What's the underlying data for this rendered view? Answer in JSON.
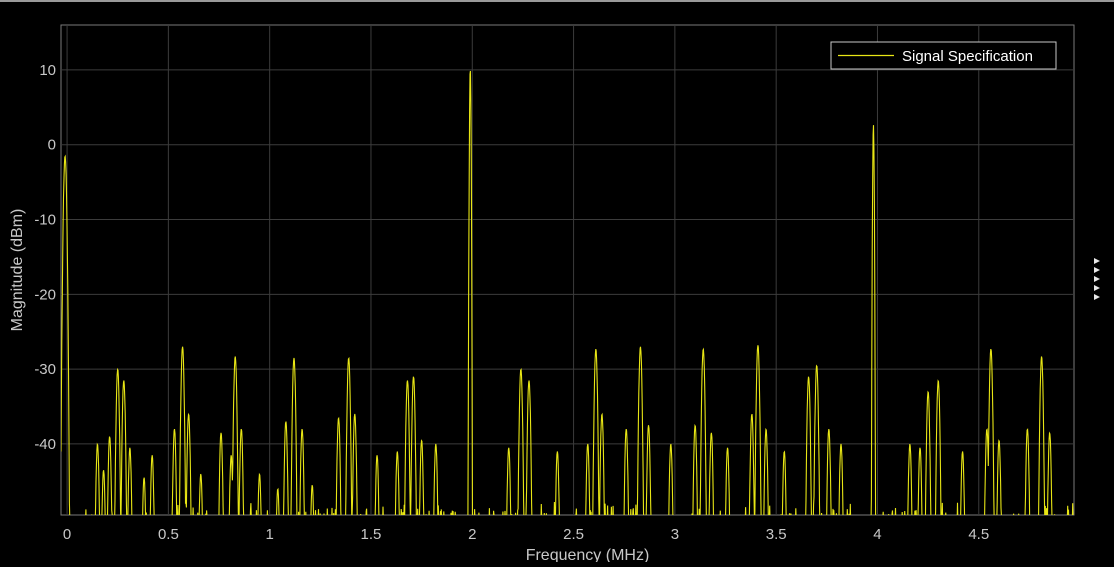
{
  "chart_data": {
    "type": "line",
    "xlabel": "Frequency (MHz)",
    "ylabel": "Magnitude (dBm)",
    "xlim": [
      -0.03,
      4.97
    ],
    "ylim": [
      -49.5,
      16
    ],
    "xticks": [
      0,
      0.5,
      1,
      1.5,
      2,
      2.5,
      3,
      3.5,
      4,
      4.5
    ],
    "xtick_labels": [
      "0",
      "0.5",
      "1",
      "1.5",
      "2",
      "2.5",
      "3",
      "3.5",
      "4",
      "4.5"
    ],
    "yticks": [
      10,
      0,
      -10,
      -20,
      -30,
      -40
    ],
    "ytick_labels": [
      "10",
      "0",
      "-10",
      "-20",
      "-30",
      "-40"
    ],
    "grid": true,
    "legend": {
      "placement": "top-right",
      "entries": [
        "Signal Specification"
      ]
    },
    "series": [
      {
        "name": "Signal Specification",
        "color": "#e8e615",
        "noise_floor": -49.5,
        "peaks": [
          [
            -0.01,
            -1.5
          ],
          [
            0.15,
            -40
          ],
          [
            0.18,
            -43.5
          ],
          [
            0.21,
            -39
          ],
          [
            0.25,
            -30
          ],
          [
            0.28,
            -31.5
          ],
          [
            0.31,
            -40.5
          ],
          [
            0.38,
            -44.5
          ],
          [
            0.42,
            -41.5
          ],
          [
            0.53,
            -38
          ],
          [
            0.57,
            -27
          ],
          [
            0.6,
            -36
          ],
          [
            0.66,
            -44
          ],
          [
            0.76,
            -38.5
          ],
          [
            0.81,
            -41.5
          ],
          [
            0.83,
            -28.3
          ],
          [
            0.86,
            -38
          ],
          [
            0.95,
            -44
          ],
          [
            1.04,
            -46
          ],
          [
            1.08,
            -37
          ],
          [
            1.12,
            -28.5
          ],
          [
            1.16,
            -38
          ],
          [
            1.21,
            -45.5
          ],
          [
            1.34,
            -36.5
          ],
          [
            1.39,
            -28.5
          ],
          [
            1.42,
            -36
          ],
          [
            1.53,
            -41.5
          ],
          [
            1.63,
            -41
          ],
          [
            1.68,
            -31.5
          ],
          [
            1.71,
            -31
          ],
          [
            1.75,
            -39.5
          ],
          [
            1.82,
            -40
          ],
          [
            1.99,
            10.2
          ],
          [
            2.18,
            -40.5
          ],
          [
            2.24,
            -30
          ],
          [
            2.28,
            -31.5
          ],
          [
            2.42,
            -41
          ],
          [
            2.57,
            -40
          ],
          [
            2.61,
            -27.3
          ],
          [
            2.64,
            -36
          ],
          [
            2.76,
            -38
          ],
          [
            2.83,
            -27
          ],
          [
            2.87,
            -37.5
          ],
          [
            2.98,
            -40
          ],
          [
            3.1,
            -37.5
          ],
          [
            3.14,
            -27.3
          ],
          [
            3.18,
            -38.5
          ],
          [
            3.26,
            -40.5
          ],
          [
            3.38,
            -36
          ],
          [
            3.41,
            -26.8
          ],
          [
            3.45,
            -38
          ],
          [
            3.54,
            -41
          ],
          [
            3.66,
            -31
          ],
          [
            3.7,
            -29.5
          ],
          [
            3.76,
            -38
          ],
          [
            3.82,
            -40
          ],
          [
            3.98,
            2.7
          ],
          [
            4.16,
            -40
          ],
          [
            4.21,
            -40.5
          ],
          [
            4.25,
            -33
          ],
          [
            4.3,
            -31.5
          ],
          [
            4.42,
            -41
          ],
          [
            4.54,
            -38
          ],
          [
            4.56,
            -27.3
          ],
          [
            4.6,
            -39.5
          ],
          [
            4.74,
            -38
          ],
          [
            4.81,
            -28.3
          ],
          [
            4.85,
            -38.5
          ]
        ]
      }
    ]
  },
  "side_markers": {
    "count": 5,
    "glyph": "▸"
  }
}
